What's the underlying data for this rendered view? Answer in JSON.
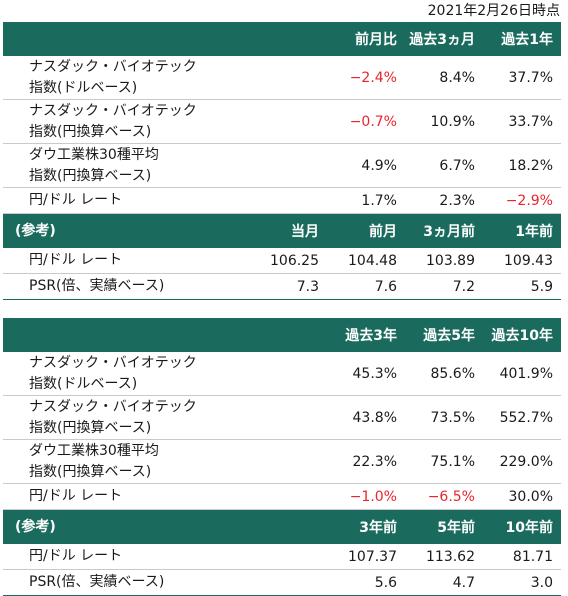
{
  "date_label": "2021年2月26日時点",
  "table1": {
    "header": [
      "前月比",
      "過去3ヵ月",
      "過去1年"
    ],
    "rows": [
      {
        "line1": "ナスダック・バイオテック",
        "line2": "指数(ドルベース)",
        "v": [
          "−2.4%",
          "8.4%",
          "37.7%"
        ]
      },
      {
        "line1": "ナスダック・バイオテック",
        "line2": "指数(円換算ベース)",
        "v": [
          "−0.7%",
          "10.9%",
          "33.7%"
        ]
      },
      {
        "line1": "ダウ工業株30種平均",
        "line2": "指数(円換算ベース)",
        "v": [
          "4.9%",
          "6.7%",
          "18.2%"
        ]
      },
      {
        "label": "円/ドル レート",
        "v": [
          "1.7%",
          "2.3%",
          "−2.9%"
        ]
      }
    ],
    "ref_header": [
      "(参考)",
      "当月",
      "前月",
      "3ヵ月前",
      "1年前"
    ],
    "ref_rows": [
      {
        "label": "円/ドル レート",
        "v": [
          "106.25",
          "104.48",
          "103.89",
          "109.43"
        ]
      },
      {
        "label": "PSR(倍、実績ベース)",
        "v": [
          "7.3",
          "7.6",
          "7.2",
          "5.9"
        ]
      }
    ]
  },
  "table2": {
    "header": [
      "過去3年",
      "過去5年",
      "過去10年"
    ],
    "rows": [
      {
        "line1": "ナスダック・バイオテック",
        "line2": "指数(ドルベース)",
        "v": [
          "45.3%",
          "85.6%",
          "401.9%"
        ]
      },
      {
        "line1": "ナスダック・バイオテック",
        "line2": "指数(円換算ベース)",
        "v": [
          "43.8%",
          "73.5%",
          "552.7%"
        ]
      },
      {
        "line1": "ダウ工業株30種平均",
        "line2": "指数(円換算ベース)",
        "v": [
          "22.3%",
          "75.1%",
          "229.0%"
        ]
      },
      {
        "label": "円/ドル レート",
        "v": [
          "−1.0%",
          "−6.5%",
          "30.0%"
        ]
      }
    ],
    "ref_header": [
      "(参考)",
      "3年前",
      "5年前",
      "10年前"
    ],
    "ref_rows": [
      {
        "label": "円/ドル レート",
        "v": [
          "107.37",
          "113.62",
          "81.71"
        ]
      },
      {
        "label": "PSR(倍、実績ベース)",
        "v": [
          "5.6",
          "4.7",
          "3.0"
        ]
      }
    ]
  },
  "colors": {
    "header_bg": "#1a6b5e",
    "header_text": "#ffffff",
    "negative": "#e8242c",
    "text": "#1a1a1a"
  }
}
